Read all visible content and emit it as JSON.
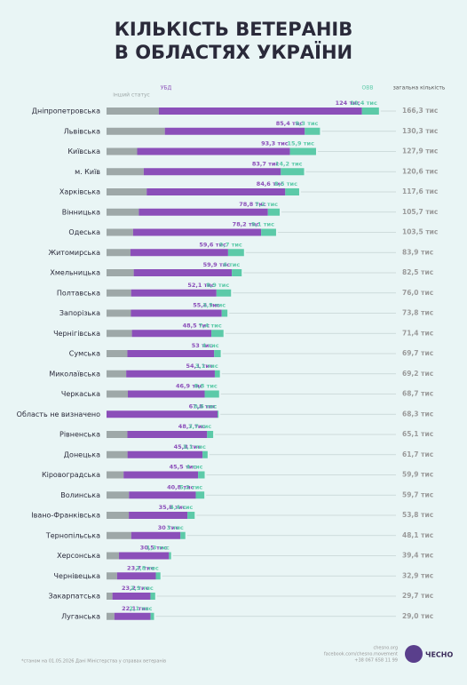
{
  "chart_data": {
    "type": "stacked-bar-horizontal",
    "title_lines": [
      "КІЛЬКІСТЬ ВЕТЕРАНІВ",
      "В ОБЛАСТЯХ УКРАЇНИ"
    ],
    "categories": [
      "Дніпропетровська",
      "Львівська",
      "Київська",
      "м. Київ",
      "Харківська",
      "Вінницька",
      "Одеська",
      "Житомирська",
      "Хмельницька",
      "Полтавська",
      "Запорізька",
      "Чернігівська",
      "Сумська",
      "Миколаївська",
      "Черкаська",
      "Область не визначено",
      "Рівненська",
      "Донецька",
      "Кіровоградська",
      "Волинська",
      "Івано-Франківська",
      "Тернопільська",
      "Херсонська",
      "Чернівецька",
      "Закарпатська",
      "Луганська"
    ],
    "series": [
      {
        "name": "інший статус",
        "color": "#9ea8a8",
        "values": [
          31.9,
          35.6,
          18.7,
          22.7,
          24.5,
          19.7,
          16.2,
          14.6,
          16.6,
          15.0,
          14.9,
          15.5,
          12.7,
          12.0,
          13.0,
          0,
          12.7,
          12.8,
          10.4,
          13.7,
          13.6,
          15.1,
          7.6,
          6.4,
          3.6,
          4.8
        ]
      },
      {
        "name": "УБД",
        "color": "#8b4fb9",
        "values": [
          124,
          85.4,
          93.3,
          83.7,
          84.6,
          78.8,
          78.2,
          59.6,
          59.9,
          52.1,
          55.4,
          48.5,
          53,
          54.1,
          46.9,
          67.8,
          48.7,
          45.8,
          45.5,
          40.8,
          35.8,
          30,
          30.5,
          23.7,
          23.2,
          22.1
        ],
        "value_labels": [
          "124 тис",
          "85,4 тис",
          "93,3 тис",
          "83,7 тис",
          "84,6 тис",
          "78,8 тис",
          "78,2 тис",
          "59,6 тис",
          "59,9 тис",
          "52,1 тис",
          "55,4 тис",
          "48,5 тис",
          "53 тис",
          "54,1 тис",
          "46,9 тис",
          "67,8 тис",
          "48,7 тис",
          "45,8 тис",
          "45,5 тис",
          "40,8 тис",
          "35,8 тис",
          "30 тис",
          "30,5 тис",
          "23,7 тис",
          "23,2 тис",
          "22,1 тис"
        ]
      },
      {
        "name": "ОВВ",
        "color": "#5ccaa8",
        "values": [
          10.4,
          9.3,
          15.9,
          14.2,
          8.5,
          7.2,
          9.1,
          9.7,
          6,
          8.9,
          3.5,
          7.4,
          4,
          3.1,
          8.8,
          0.6,
          3.7,
          3.1,
          4,
          5.2,
          4.4,
          3,
          1.3,
          2.8,
          2.9,
          2.1
        ],
        "value_labels": [
          "10,4 тис",
          "9,3 тис",
          "15,9 тис",
          "14,2 тис",
          "8,5 тис",
          "7,2 тис",
          "9,1 тис",
          "9,7 тис",
          "6 тис",
          "8,9 тис",
          "3,5 тис",
          "7,4 тис",
          "4 тис",
          "3,1 тис",
          "8,8 тис",
          "0,6 тис",
          "3,7 тис",
          "3,1 тис",
          "4 тис",
          "5,2 тис",
          "4,4 тис",
          "3 тис",
          "1,3 тис",
          "2,8 тис",
          "2,9 тис",
          "2,1 тис"
        ]
      }
    ],
    "totals": {
      "name": "загальна кількість",
      "values": [
        166.3,
        130.3,
        127.9,
        120.6,
        117.6,
        105.7,
        103.5,
        83.9,
        82.5,
        76.0,
        73.8,
        71.4,
        69.7,
        69.2,
        68.7,
        68.3,
        65.1,
        61.7,
        59.9,
        59.7,
        53.8,
        48.1,
        39.4,
        32.9,
        29.7,
        29.0
      ],
      "value_labels": [
        "166,3 тис",
        "130,3 тис",
        "127,9 тис",
        "120,6 тис",
        "117,6 тис",
        "105,7 тис",
        "103,5 тис",
        "83,9 тис",
        "82,5 тис",
        "76,0 тис",
        "73,8 тис",
        "71,4 тис",
        "69,7 тис",
        "69,2 тис",
        "68,7 тис",
        "68,3 тис",
        "65,1 тис",
        "61,7 тис",
        "59,9 тис",
        "59,7 тис",
        "53,8 тис",
        "48,1 тис",
        "39,4 тис",
        "32,9 тис",
        "29,7 тис",
        "29,0 тис"
      ]
    },
    "footnote": "*станом на 01.05.2026 Дані Міністерства у справах ветеранів",
    "contacts": [
      "chesno.org",
      "facebook.com/chesno.movement",
      "+38 067 658 11 99"
    ],
    "logo": "ЧЕСНО"
  }
}
